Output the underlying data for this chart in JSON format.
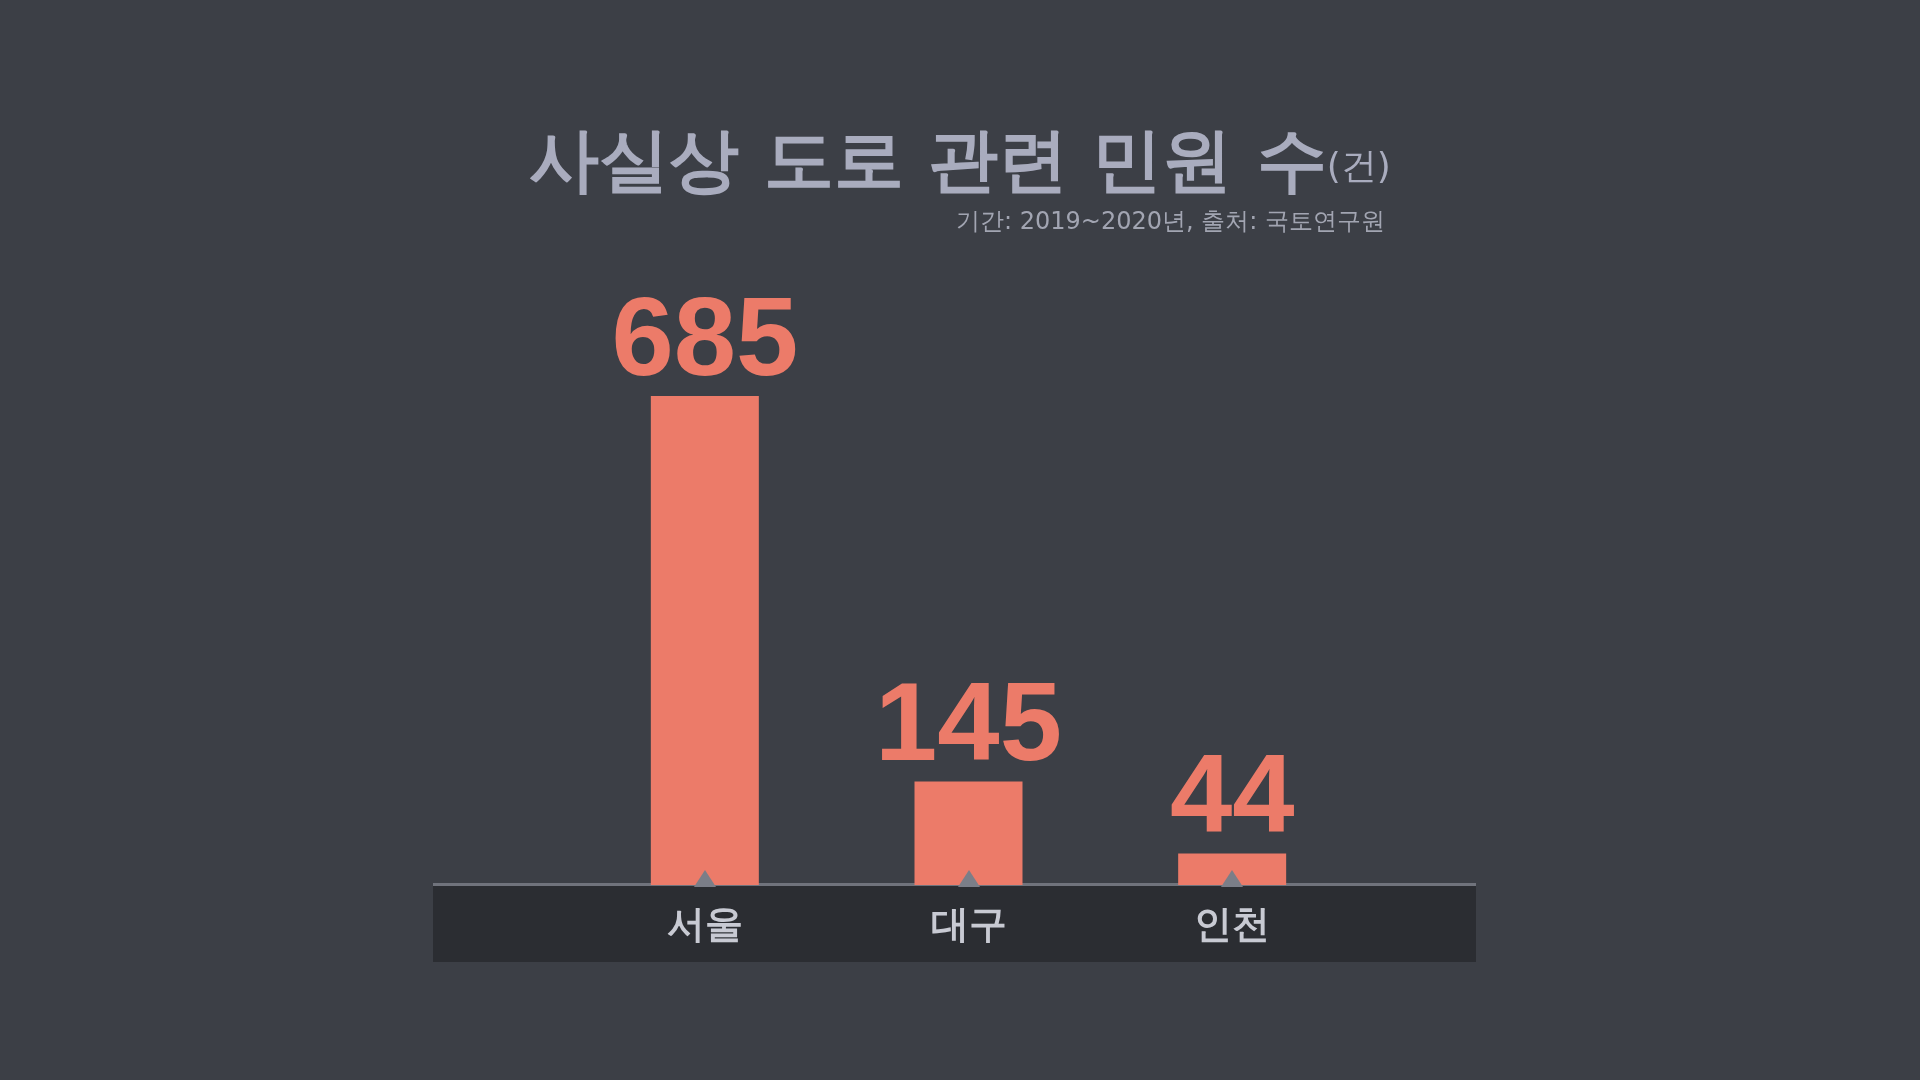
{
  "chart_data": {
    "type": "bar",
    "title": "사실상 도로 관련 민원 수(건)",
    "subtitle": "기간: 2019~2020년, 출처: 국토연구원",
    "categories": [
      "서울",
      "대구",
      "인천"
    ],
    "values": [
      685,
      145,
      44
    ],
    "color": "#ec7b69",
    "data_labels": true
  }
}
